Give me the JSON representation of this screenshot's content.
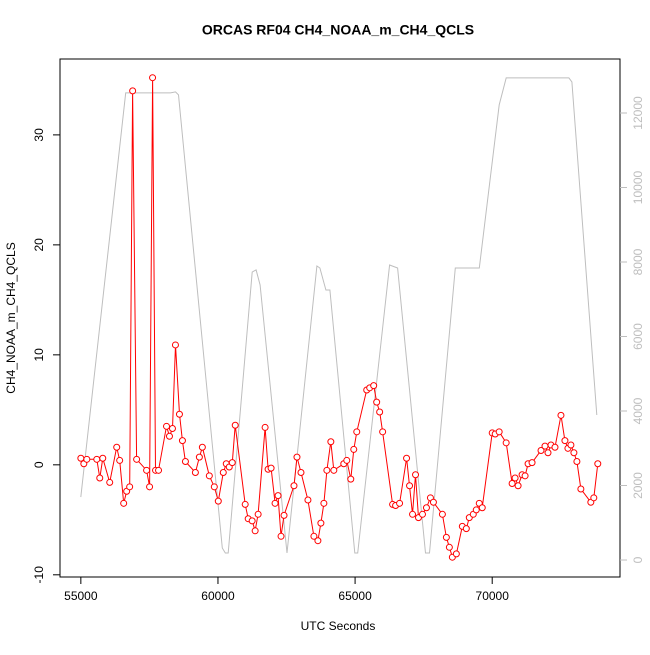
{
  "chart_data": {
    "type": "line",
    "title": "ORCAS RF04 CH4_NOAA_m_CH4_QCLS",
    "x_label": "UTC Seconds",
    "y_label": "CH4_NOAA_m_CH4_QCLS",
    "xlim": [
      54240,
      74660
    ],
    "xticks": [
      55000,
      60000,
      65000,
      70000
    ],
    "ylim": [
      -10.2,
      36.9
    ],
    "yticks": [
      -10,
      0,
      10,
      20,
      30
    ],
    "y2lim": [
      -456,
      13450
    ],
    "y2ticks": [
      0,
      2000,
      4000,
      6000,
      8000,
      10000,
      12000
    ],
    "series": [
      {
        "color": "#ff0000",
        "markers": true,
        "x": [
          55000,
          55109,
          55218,
          55581,
          55690,
          55799,
          56053,
          56308,
          56416,
          56562,
          56671,
          56780,
          56889,
          57034,
          57397,
          57506,
          57615,
          57724,
          57833,
          58124,
          58232,
          58341,
          58450,
          58596,
          58705,
          58814,
          59177,
          59322,
          59431,
          59685,
          59867,
          60012,
          60194,
          60303,
          60412,
          60521,
          60630,
          60993,
          61102,
          61247,
          61356,
          61465,
          61719,
          61828,
          61937,
          62082,
          62191,
          62300,
          62409,
          62772,
          62881,
          63027,
          63281,
          63499,
          63644,
          63753,
          63862,
          63971,
          64116,
          64225,
          64588,
          64697,
          64843,
          64952,
          65061,
          65424,
          65533,
          65678,
          65787,
          65896,
          66005,
          66368,
          66477,
          66622,
          66877,
          66986,
          67095,
          67204,
          67312,
          67458,
          67603,
          67748,
          67857,
          68184,
          68329,
          68438,
          68547,
          68693,
          68911,
          69056,
          69165,
          69310,
          69419,
          69528,
          69637,
          70000,
          70109,
          70254,
          70509,
          70726,
          70835,
          70944,
          71090,
          71199,
          71308,
          71453,
          71780,
          71925,
          72034,
          72143,
          72289,
          72507,
          72652,
          72761,
          72870,
          72979,
          73088,
          73233,
          73596,
          73705,
          73850
        ],
        "values": [
          0.6,
          0.1,
          0.5,
          0.5,
          -1.2,
          0.6,
          -1.6,
          1.6,
          0.4,
          -3.5,
          -2.4,
          -2.0,
          34.0,
          0.5,
          -0.5,
          -2.0,
          35.2,
          -0.5,
          -0.5,
          3.5,
          2.6,
          3.3,
          10.9,
          4.6,
          2.2,
          0.3,
          -0.7,
          0.7,
          1.6,
          -1.0,
          -2.0,
          -3.3,
          -0.7,
          0.1,
          -0.2,
          0.2,
          3.6,
          -3.6,
          -4.9,
          -5.1,
          -6.0,
          -4.5,
          3.4,
          -0.4,
          -0.3,
          -3.5,
          -2.8,
          -6.5,
          -4.6,
          -1.9,
          0.7,
          -0.7,
          -3.2,
          -6.5,
          -6.9,
          -5.3,
          -3.5,
          -0.5,
          2.1,
          -0.5,
          0.1,
          0.4,
          -1.3,
          1.4,
          3.0,
          6.8,
          7.0,
          7.2,
          5.7,
          4.8,
          3.0,
          -3.6,
          -3.7,
          -3.5,
          0.6,
          -1.9,
          -4.5,
          -0.9,
          -4.8,
          -4.5,
          -3.9,
          -3.0,
          -3.4,
          -4.5,
          -6.6,
          -7.5,
          -8.4,
          -8.1,
          -5.6,
          -5.8,
          -4.8,
          -4.5,
          -4.1,
          -3.5,
          -3.9,
          2.9,
          2.8,
          3.0,
          2.0,
          -1.7,
          -1.2,
          -1.9,
          -0.9,
          -1.0,
          0.1,
          0.2,
          1.3,
          1.7,
          1.1,
          1.8,
          1.6,
          4.5,
          2.2,
          1.5,
          1.8,
          1.1,
          0.3,
          -2.2,
          -3.4,
          -3.0,
          0.1
        ]
      },
      {
        "color": "#bebebe",
        "axis": "y2",
        "markers": false,
        "x": [
          55000,
          56634,
          58269,
          58450,
          58560,
          60157,
          60266,
          60375,
          61247,
          61392,
          61537,
          62518,
          63608,
          63717,
          63935,
          64080,
          64988,
          65097,
          66259,
          66550,
          67567,
          67712,
          68656,
          69528,
          70254,
          70509,
          72797,
          72906,
          73814
        ],
        "values": [
          1690,
          12539,
          12539,
          12566,
          12485,
          322,
          188,
          188,
          7733,
          7787,
          7384,
          188,
          7894,
          7840,
          7250,
          7250,
          188,
          188,
          7921,
          7840,
          188,
          188,
          7840,
          7840,
          12217,
          12942,
          12942,
          12834,
          3893
        ]
      }
    ]
  }
}
